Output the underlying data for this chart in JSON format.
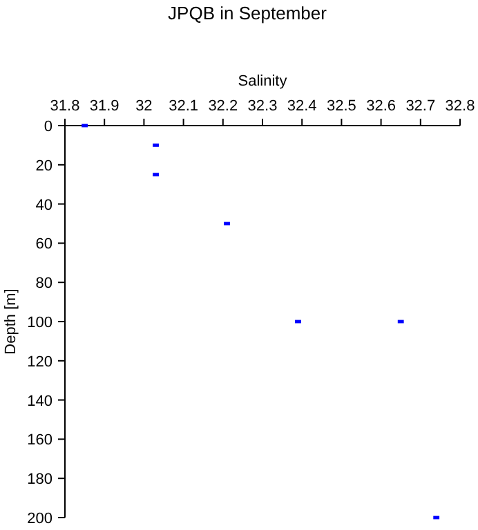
{
  "chart_data": {
    "type": "scatter",
    "title": "JPQB in September",
    "xlabel": "Salinity",
    "ylabel": "Depth [m]",
    "x": [
      31.85,
      32.03,
      32.03,
      32.21,
      32.39,
      32.65,
      32.74
    ],
    "values": [
      0,
      10,
      25,
      50,
      100,
      100,
      200
    ],
    "color": "#0000ff",
    "marker": "square",
    "xlim": [
      31.8,
      32.8
    ],
    "xticks": [
      31.8,
      31.9,
      32,
      32.1,
      32.2,
      32.3,
      32.4,
      32.5,
      32.6,
      32.7,
      32.8
    ],
    "ylim": [
      200,
      0
    ],
    "yticks": [
      0,
      20,
      40,
      60,
      80,
      100,
      120,
      140,
      160,
      180,
      200
    ]
  }
}
